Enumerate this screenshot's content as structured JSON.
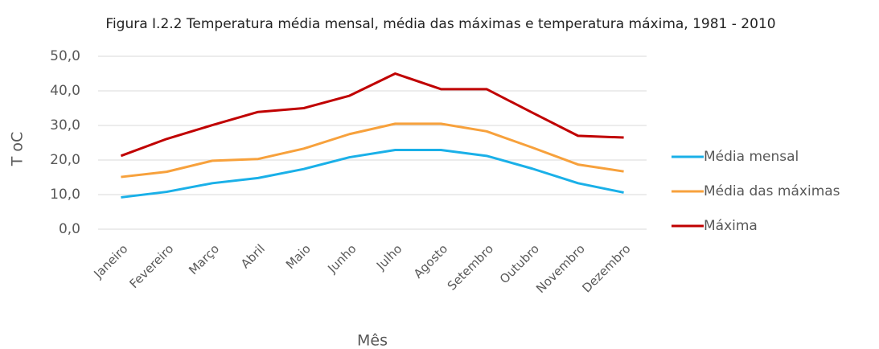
{
  "chart_data": {
    "type": "line",
    "title": "Figura I.2.2 Temperatura média mensal, média das máximas e temperatura máxima, 1981 - 2010",
    "x_label": "Mês",
    "y_label": "T oC",
    "categories": [
      "Janeiro",
      "Fevereiro",
      "Março",
      "Abril",
      "Maio",
      "Junho",
      "Julho",
      "Agosto",
      "Setembro",
      "Outubro",
      "Novembro",
      "Dezembro"
    ],
    "series": [
      {
        "name": "Média mensal",
        "color": "#1ab0e8",
        "values": [
          9.2,
          10.8,
          13.3,
          14.8,
          17.4,
          20.8,
          22.9,
          22.9,
          21.2,
          17.5,
          13.3,
          10.6
        ]
      },
      {
        "name": "Média das máximas",
        "color": "#f7a13c",
        "values": [
          15.1,
          16.6,
          19.8,
          20.3,
          23.3,
          27.5,
          30.5,
          30.5,
          28.3,
          23.6,
          18.7,
          16.7
        ]
      },
      {
        "name": "Máxima",
        "color": "#c00000",
        "values": [
          21.2,
          26.1,
          30.1,
          33.9,
          35.0,
          38.6,
          45.0,
          40.5,
          40.5,
          33.7,
          27.0,
          26.5
        ]
      }
    ],
    "ylim": [
      0,
      50
    ],
    "yticks": [
      {
        "value": 0,
        "label": "0,0"
      },
      {
        "value": 10,
        "label": "10,0"
      },
      {
        "value": 20,
        "label": "20,0"
      },
      {
        "value": 30,
        "label": "30,0"
      },
      {
        "value": 40,
        "label": "40,0"
      },
      {
        "value": 50,
        "label": "50,0"
      }
    ],
    "grid": true,
    "legend": "right"
  }
}
